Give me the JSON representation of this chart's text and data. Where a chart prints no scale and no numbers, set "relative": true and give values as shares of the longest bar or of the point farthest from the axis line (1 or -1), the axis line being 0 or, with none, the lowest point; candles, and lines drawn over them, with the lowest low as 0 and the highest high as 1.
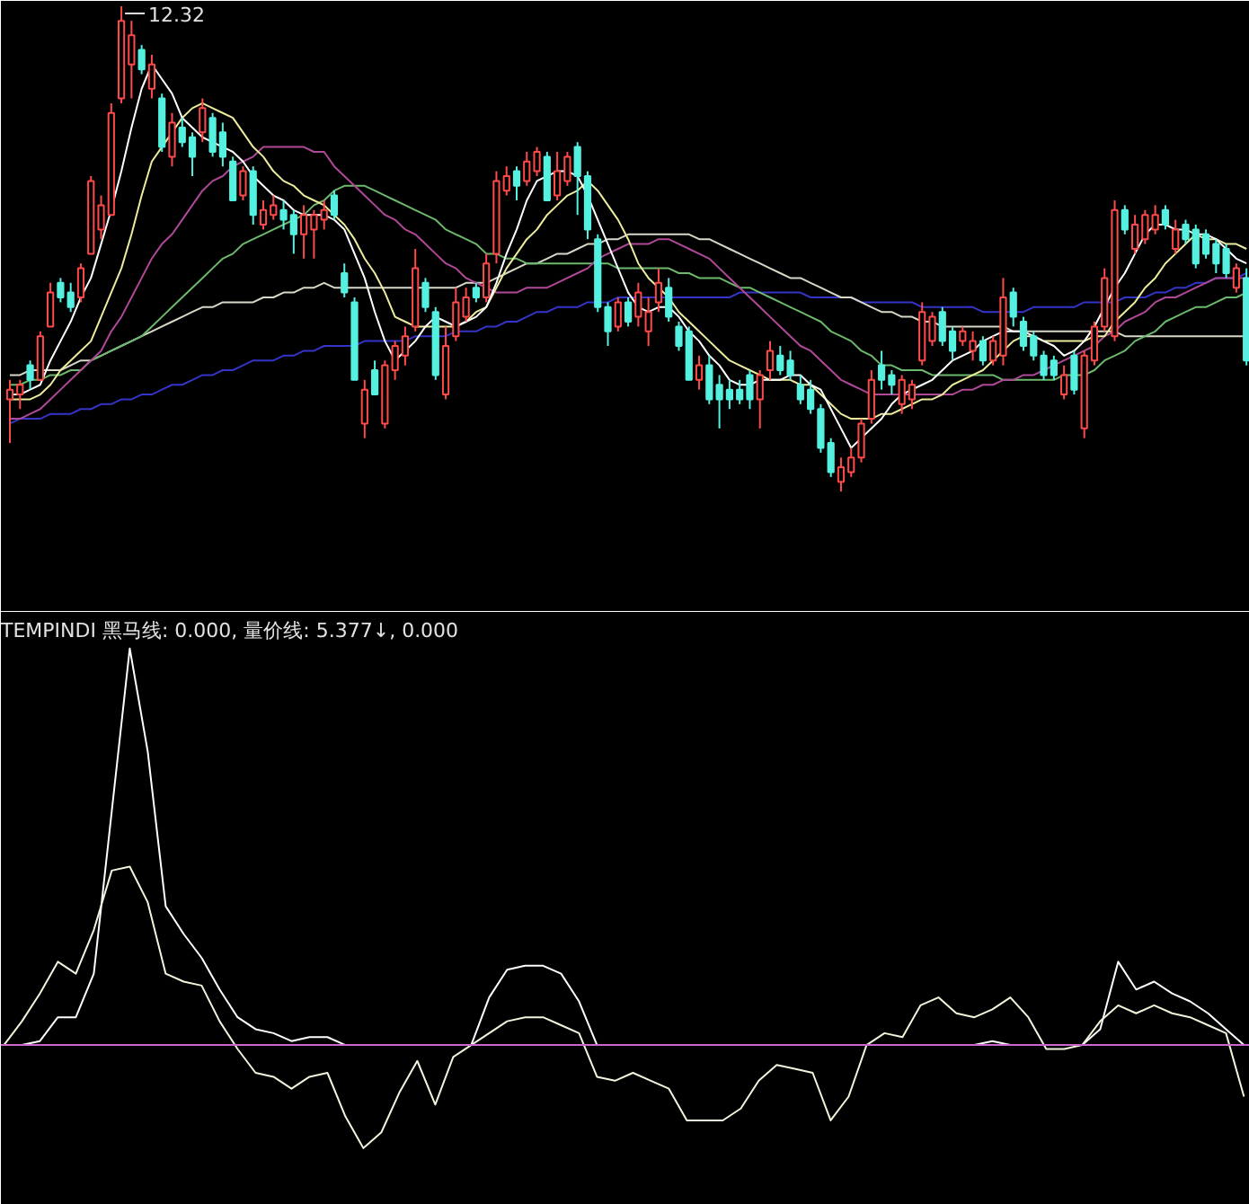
{
  "chart_data": [
    {
      "type": "candlestick",
      "relative": true,
      "categories": [
        null,
        null,
        null,
        null,
        null,
        null,
        null,
        null,
        null,
        null,
        null,
        null,
        null,
        null,
        null,
        null,
        null,
        null,
        null,
        null,
        null,
        null,
        null,
        null,
        null,
        null,
        null,
        null,
        null,
        null,
        null,
        null,
        null,
        null,
        null,
        null,
        null,
        null,
        null,
        null,
        null,
        null,
        null,
        null,
        null,
        null,
        null,
        null,
        null,
        null,
        null,
        null,
        null,
        null,
        null,
        null,
        null,
        null,
        null,
        null,
        null,
        null,
        null,
        null,
        null,
        null,
        null,
        null,
        null,
        null,
        null,
        null,
        null,
        null,
        null,
        null,
        null,
        null,
        null,
        null,
        null,
        null,
        null,
        null,
        null,
        null,
        null,
        null,
        null,
        null,
        null,
        null,
        null,
        null,
        null,
        null,
        null,
        null,
        null,
        null,
        null,
        null,
        null,
        null,
        null,
        null,
        null,
        null,
        null,
        null,
        null,
        null,
        null,
        null,
        null,
        null,
        null,
        null,
        null,
        null,
        null,
        null,
        null
      ],
      "ohlc": [
        [
          0.19,
          0.23,
          0.1,
          0.21
        ],
        [
          0.2,
          0.23,
          0.17,
          0.22
        ],
        [
          0.26,
          0.27,
          0.21,
          0.23
        ],
        [
          0.23,
          0.33,
          0.23,
          0.32
        ],
        [
          0.34,
          0.43,
          0.34,
          0.41
        ],
        [
          0.43,
          0.44,
          0.39,
          0.4
        ],
        [
          0.41,
          0.43,
          0.37,
          0.38
        ],
        [
          0.4,
          0.47,
          0.39,
          0.46
        ],
        [
          0.49,
          0.65,
          0.49,
          0.64
        ],
        [
          0.54,
          0.61,
          0.52,
          0.59
        ],
        [
          0.57,
          0.8,
          0.57,
          0.78
        ],
        [
          0.81,
          1.0,
          0.8,
          0.97
        ],
        [
          0.88,
          0.97,
          0.81,
          0.94
        ],
        [
          0.91,
          0.92,
          0.86,
          0.87
        ],
        [
          0.83,
          0.9,
          0.81,
          0.88
        ],
        [
          0.81,
          0.82,
          0.7,
          0.71
        ],
        [
          0.69,
          0.78,
          0.67,
          0.76
        ],
        [
          0.75,
          0.77,
          0.71,
          0.72
        ],
        [
          0.73,
          0.74,
          0.65,
          0.69
        ],
        [
          0.74,
          0.81,
          0.72,
          0.79
        ],
        [
          0.77,
          0.78,
          0.69,
          0.7
        ],
        [
          0.74,
          0.76,
          0.67,
          0.69
        ],
        [
          0.68,
          0.69,
          0.6,
          0.6
        ],
        [
          0.61,
          0.67,
          0.6,
          0.66
        ],
        [
          0.66,
          0.67,
          0.55,
          0.57
        ],
        [
          0.55,
          0.6,
          0.54,
          0.58
        ],
        [
          0.57,
          0.61,
          0.56,
          0.59
        ],
        [
          0.58,
          0.6,
          0.54,
          0.56
        ],
        [
          0.57,
          0.58,
          0.49,
          0.53
        ],
        [
          0.53,
          0.59,
          0.48,
          0.57
        ],
        [
          0.54,
          0.58,
          0.48,
          0.57
        ],
        [
          0.56,
          0.6,
          0.54,
          0.58
        ],
        [
          0.61,
          0.62,
          0.56,
          0.57
        ],
        [
          0.45,
          0.47,
          0.4,
          0.41
        ],
        [
          0.39,
          0.4,
          0.23,
          0.23
        ],
        [
          0.14,
          0.23,
          0.11,
          0.21
        ],
        [
          0.25,
          0.27,
          0.2,
          0.2
        ],
        [
          0.14,
          0.27,
          0.13,
          0.26
        ],
        [
          0.25,
          0.31,
          0.23,
          0.3
        ],
        [
          0.28,
          0.34,
          0.26,
          0.32
        ],
        [
          0.34,
          0.5,
          0.33,
          0.46
        ],
        [
          0.43,
          0.44,
          0.37,
          0.38
        ],
        [
          0.37,
          0.38,
          0.23,
          0.24
        ],
        [
          0.2,
          0.34,
          0.19,
          0.3
        ],
        [
          0.32,
          0.42,
          0.31,
          0.39
        ],
        [
          0.36,
          0.42,
          0.35,
          0.4
        ],
        [
          0.42,
          0.43,
          0.39,
          0.4
        ],
        [
          0.4,
          0.49,
          0.39,
          0.47
        ],
        [
          0.49,
          0.66,
          0.47,
          0.64
        ],
        [
          0.62,
          0.67,
          0.61,
          0.65
        ],
        [
          0.66,
          0.67,
          0.6,
          0.63
        ],
        [
          0.64,
          0.7,
          0.63,
          0.68
        ],
        [
          0.66,
          0.71,
          0.65,
          0.7
        ],
        [
          0.69,
          0.7,
          0.6,
          0.6
        ],
        [
          0.61,
          0.7,
          0.6,
          0.66
        ],
        [
          0.64,
          0.7,
          0.63,
          0.69
        ],
        [
          0.71,
          0.72,
          0.57,
          0.65
        ],
        [
          0.65,
          0.66,
          0.52,
          0.54
        ],
        [
          0.52,
          0.53,
          0.37,
          0.38
        ],
        [
          0.38,
          0.39,
          0.3,
          0.33
        ],
        [
          0.34,
          0.4,
          0.33,
          0.39
        ],
        [
          0.39,
          0.4,
          0.34,
          0.35
        ],
        [
          0.36,
          0.43,
          0.34,
          0.41
        ],
        [
          0.33,
          0.4,
          0.3,
          0.37
        ],
        [
          0.39,
          0.46,
          0.37,
          0.43
        ],
        [
          0.42,
          0.44,
          0.35,
          0.36
        ],
        [
          0.34,
          0.35,
          0.29,
          0.3
        ],
        [
          0.33,
          0.34,
          0.23,
          0.23
        ],
        [
          0.23,
          0.28,
          0.21,
          0.26
        ],
        [
          0.26,
          0.28,
          0.18,
          0.19
        ],
        [
          0.22,
          0.24,
          0.13,
          0.19
        ],
        [
          0.21,
          0.23,
          0.17,
          0.19
        ],
        [
          0.21,
          0.23,
          0.18,
          0.19
        ],
        [
          0.24,
          0.25,
          0.17,
          0.19
        ],
        [
          0.19,
          0.25,
          0.13,
          0.24
        ],
        [
          0.25,
          0.31,
          0.23,
          0.29
        ],
        [
          0.28,
          0.3,
          0.24,
          0.25
        ],
        [
          0.27,
          0.29,
          0.23,
          0.24
        ],
        [
          0.22,
          0.24,
          0.18,
          0.19
        ],
        [
          0.21,
          0.23,
          0.16,
          0.17
        ],
        [
          0.17,
          0.18,
          0.08,
          0.09
        ],
        [
          0.1,
          0.11,
          0.03,
          0.04
        ],
        [
          0.02,
          0.07,
          0.0,
          0.05
        ],
        [
          0.04,
          0.09,
          0.03,
          0.07
        ],
        [
          0.07,
          0.15,
          0.06,
          0.14
        ],
        [
          0.15,
          0.25,
          0.14,
          0.23
        ],
        [
          0.26,
          0.29,
          0.21,
          0.23
        ],
        [
          0.24,
          0.25,
          0.2,
          0.22
        ],
        [
          0.18,
          0.24,
          0.16,
          0.23
        ],
        [
          0.19,
          0.23,
          0.17,
          0.22
        ],
        [
          0.27,
          0.39,
          0.26,
          0.37
        ],
        [
          0.31,
          0.37,
          0.3,
          0.36
        ],
        [
          0.37,
          0.38,
          0.3,
          0.31
        ],
        [
          0.33,
          0.34,
          0.27,
          0.29
        ],
        [
          0.31,
          0.34,
          0.3,
          0.33
        ],
        [
          0.29,
          0.33,
          0.27,
          0.31
        ],
        [
          0.31,
          0.32,
          0.26,
          0.27
        ],
        [
          0.27,
          0.32,
          0.26,
          0.31
        ],
        [
          0.28,
          0.44,
          0.26,
          0.4
        ],
        [
          0.41,
          0.42,
          0.34,
          0.36
        ],
        [
          0.35,
          0.36,
          0.29,
          0.3
        ],
        [
          0.32,
          0.33,
          0.27,
          0.28
        ],
        [
          0.28,
          0.29,
          0.23,
          0.24
        ],
        [
          0.27,
          0.28,
          0.23,
          0.24
        ],
        [
          0.2,
          0.26,
          0.19,
          0.24
        ],
        [
          0.28,
          0.29,
          0.2,
          0.21
        ],
        [
          0.13,
          0.29,
          0.11,
          0.28
        ],
        [
          0.27,
          0.35,
          0.26,
          0.34
        ],
        [
          0.34,
          0.46,
          0.33,
          0.44
        ],
        [
          0.32,
          0.6,
          0.31,
          0.58
        ],
        [
          0.58,
          0.59,
          0.53,
          0.54
        ],
        [
          0.5,
          0.57,
          0.49,
          0.55
        ],
        [
          0.52,
          0.58,
          0.51,
          0.57
        ],
        [
          0.54,
          0.59,
          0.53,
          0.57
        ],
        [
          0.58,
          0.59,
          0.54,
          0.55
        ],
        [
          0.5,
          0.56,
          0.49,
          0.54
        ],
        [
          0.55,
          0.56,
          0.51,
          0.52
        ],
        [
          0.54,
          0.55,
          0.46,
          0.47
        ],
        [
          0.53,
          0.54,
          0.48,
          0.49
        ],
        [
          0.51,
          0.52,
          0.45,
          0.47
        ],
        [
          0.5,
          0.51,
          0.44,
          0.45
        ],
        [
          0.42,
          0.47,
          0.41,
          0.46
        ],
        [
          0.44,
          0.46,
          0.26,
          0.27
        ]
      ],
      "colors": [
        "#ff4a4a",
        "#ff4a4a",
        "#54f0e0",
        "#ff4a4a",
        "#ff4a4a",
        "#54f0e0",
        "#54f0e0",
        "#ff4a4a",
        "#ff4a4a",
        "#ff4a4a",
        "#ff4a4a",
        "#ff4a4a",
        "#ff4a4a",
        "#54f0e0",
        "#ff4a4a",
        "#54f0e0",
        "#ff4a4a",
        "#54f0e0",
        "#54f0e0",
        "#ff4a4a",
        "#54f0e0",
        "#54f0e0",
        "#54f0e0",
        "#ff4a4a",
        "#54f0e0",
        "#ff4a4a",
        "#ff4a4a",
        "#54f0e0",
        "#54f0e0",
        "#ff4a4a",
        "#ff4a4a",
        "#ff4a4a",
        "#54f0e0",
        "#54f0e0",
        "#54f0e0",
        "#ff4a4a",
        "#54f0e0",
        "#ff4a4a",
        "#ff4a4a",
        "#ff4a4a",
        "#ff4a4a",
        "#54f0e0",
        "#54f0e0",
        "#ff4a4a",
        "#ff4a4a",
        "#ff4a4a",
        "#54f0e0",
        "#ff4a4a",
        "#ff4a4a",
        "#ff4a4a",
        "#54f0e0",
        "#ff4a4a",
        "#ff4a4a",
        "#54f0e0",
        "#ff4a4a",
        "#ff4a4a",
        "#54f0e0",
        "#54f0e0",
        "#54f0e0",
        "#54f0e0",
        "#ff4a4a",
        "#54f0e0",
        "#ff4a4a",
        "#ff4a4a",
        "#ff4a4a",
        "#54f0e0",
        "#54f0e0",
        "#54f0e0",
        "#ff4a4a",
        "#54f0e0",
        "#54f0e0",
        "#54f0e0",
        "#54f0e0",
        "#54f0e0",
        "#ff4a4a",
        "#ff4a4a",
        "#54f0e0",
        "#54f0e0",
        "#54f0e0",
        "#54f0e0",
        "#54f0e0",
        "#54f0e0",
        "#ff4a4a",
        "#ff4a4a",
        "#ff4a4a",
        "#ff4a4a",
        "#54f0e0",
        "#54f0e0",
        "#ff4a4a",
        "#ff4a4a",
        "#ff4a4a",
        "#ff4a4a",
        "#54f0e0",
        "#54f0e0",
        "#ff4a4a",
        "#ff4a4a",
        "#54f0e0",
        "#ff4a4a",
        "#ff4a4a",
        "#54f0e0",
        "#54f0e0",
        "#54f0e0",
        "#54f0e0",
        "#54f0e0",
        "#ff4a4a",
        "#54f0e0",
        "#ff4a4a",
        "#ff4a4a",
        "#ff4a4a",
        "#ff4a4a",
        "#54f0e0",
        "#ff4a4a",
        "#ff4a4a",
        "#ff4a4a",
        "#54f0e0",
        "#ff4a4a",
        "#54f0e0",
        "#54f0e0",
        "#54f0e0",
        "#54f0e0",
        "#54f0e0",
        "#ff4a4a",
        "#54f0e0"
      ],
      "series": [
        {
          "type": "line",
          "color": "#3434c8",
          "values": [
            0.14,
            0.15,
            0.15,
            0.15,
            0.16,
            0.16,
            0.16,
            0.17,
            0.17,
            0.18,
            0.18,
            0.19,
            0.19,
            0.2,
            0.2,
            0.21,
            0.22,
            0.22,
            0.23,
            0.24,
            0.24,
            0.25,
            0.25,
            0.26,
            0.27,
            0.27,
            0.27,
            0.28,
            0.28,
            0.29,
            0.29,
            0.3,
            0.3,
            0.3,
            0.3,
            0.31,
            0.31,
            0.31,
            0.31,
            0.31,
            0.32,
            0.32,
            0.32,
            0.32,
            0.33,
            0.33,
            0.33,
            0.34,
            0.34,
            0.35,
            0.35,
            0.36,
            0.37,
            0.37,
            0.38,
            0.38,
            0.38,
            0.39,
            0.39,
            0.39,
            0.4,
            0.4,
            0.4,
            0.4,
            0.4,
            0.4,
            0.4,
            0.4,
            0.4,
            0.4,
            0.4,
            0.4,
            0.41,
            0.41,
            0.41,
            0.41,
            0.41,
            0.41,
            0.41,
            0.4,
            0.4,
            0.4,
            0.4,
            0.4,
            0.39,
            0.39,
            0.39,
            0.39,
            0.39,
            0.39,
            0.38,
            0.38,
            0.38,
            0.38,
            0.38,
            0.38,
            0.37,
            0.37,
            0.37,
            0.37,
            0.37,
            0.38,
            0.38,
            0.38,
            0.38,
            0.38,
            0.39,
            0.39,
            0.39,
            0.39,
            0.4,
            0.4,
            0.4,
            0.41,
            0.41,
            0.42,
            0.42,
            0.43,
            0.43,
            0.44,
            0.44,
            0.44,
            0.45
          ]
        },
        {
          "type": "line",
          "color": "#d8d8c8",
          "values": [
            0.24,
            0.24,
            0.25,
            0.25,
            0.25,
            0.25,
            0.26,
            0.27,
            0.27,
            0.28,
            0.29,
            0.3,
            0.31,
            0.32,
            0.33,
            0.34,
            0.35,
            0.36,
            0.37,
            0.38,
            0.38,
            0.39,
            0.39,
            0.39,
            0.39,
            0.4,
            0.4,
            0.41,
            0.41,
            0.42,
            0.42,
            0.43,
            0.42,
            0.42,
            0.42,
            0.42,
            0.42,
            0.42,
            0.42,
            0.42,
            0.42,
            0.42,
            0.42,
            0.42,
            0.42,
            0.43,
            0.43,
            0.43,
            0.44,
            0.45,
            0.46,
            0.47,
            0.47,
            0.48,
            0.49,
            0.49,
            0.5,
            0.51,
            0.51,
            0.52,
            0.52,
            0.53,
            0.53,
            0.53,
            0.53,
            0.53,
            0.53,
            0.53,
            0.52,
            0.52,
            0.51,
            0.5,
            0.49,
            0.48,
            0.47,
            0.46,
            0.45,
            0.44,
            0.44,
            0.43,
            0.42,
            0.41,
            0.4,
            0.4,
            0.39,
            0.38,
            0.37,
            0.37,
            0.36,
            0.36,
            0.35,
            0.35,
            0.34,
            0.34,
            0.34,
            0.34,
            0.34,
            0.34,
            0.34,
            0.33,
            0.33,
            0.33,
            0.33,
            0.33,
            0.33,
            0.33,
            0.33,
            0.33,
            0.33,
            0.33,
            0.32,
            0.32,
            0.32,
            0.32,
            0.32,
            0.32,
            0.32,
            0.32,
            0.32,
            0.32,
            0.32,
            0.32,
            0.32
          ]
        },
        {
          "type": "line",
          "color": "#6cb86c",
          "values": [
            0.22,
            0.22,
            0.23,
            0.23,
            0.24,
            0.24,
            0.25,
            0.25,
            0.27,
            0.28,
            0.29,
            0.3,
            0.31,
            0.32,
            0.34,
            0.36,
            0.38,
            0.4,
            0.42,
            0.44,
            0.46,
            0.48,
            0.49,
            0.51,
            0.52,
            0.53,
            0.54,
            0.55,
            0.56,
            0.57,
            0.59,
            0.6,
            0.62,
            0.63,
            0.63,
            0.63,
            0.62,
            0.61,
            0.6,
            0.59,
            0.58,
            0.57,
            0.56,
            0.54,
            0.53,
            0.52,
            0.51,
            0.49,
            0.49,
            0.48,
            0.48,
            0.47,
            0.47,
            0.47,
            0.47,
            0.47,
            0.47,
            0.47,
            0.47,
            0.47,
            0.46,
            0.46,
            0.46,
            0.46,
            0.46,
            0.46,
            0.45,
            0.45,
            0.44,
            0.44,
            0.44,
            0.43,
            0.42,
            0.42,
            0.41,
            0.4,
            0.39,
            0.38,
            0.37,
            0.36,
            0.35,
            0.33,
            0.32,
            0.31,
            0.29,
            0.28,
            0.26,
            0.26,
            0.25,
            0.25,
            0.25,
            0.24,
            0.24,
            0.24,
            0.24,
            0.24,
            0.24,
            0.24,
            0.23,
            0.23,
            0.23,
            0.23,
            0.23,
            0.23,
            0.24,
            0.24,
            0.24,
            0.25,
            0.27,
            0.28,
            0.29,
            0.31,
            0.32,
            0.33,
            0.35,
            0.36,
            0.37,
            0.38,
            0.38,
            0.39,
            0.4,
            0.4,
            0.41
          ]
        },
        {
          "type": "line",
          "color": "#b04898",
          "values": [
            0.15,
            0.15,
            0.16,
            0.17,
            0.19,
            0.21,
            0.23,
            0.25,
            0.27,
            0.29,
            0.33,
            0.36,
            0.4,
            0.44,
            0.48,
            0.51,
            0.53,
            0.56,
            0.59,
            0.62,
            0.64,
            0.65,
            0.67,
            0.68,
            0.69,
            0.71,
            0.71,
            0.71,
            0.71,
            0.71,
            0.7,
            0.7,
            0.67,
            0.65,
            0.63,
            0.61,
            0.59,
            0.57,
            0.56,
            0.54,
            0.53,
            0.51,
            0.49,
            0.47,
            0.46,
            0.44,
            0.43,
            0.42,
            0.41,
            0.41,
            0.41,
            0.42,
            0.42,
            0.42,
            0.43,
            0.44,
            0.45,
            0.46,
            0.48,
            0.49,
            0.5,
            0.51,
            0.51,
            0.51,
            0.52,
            0.52,
            0.51,
            0.5,
            0.49,
            0.48,
            0.46,
            0.44,
            0.42,
            0.4,
            0.38,
            0.36,
            0.34,
            0.32,
            0.3,
            0.29,
            0.27,
            0.25,
            0.23,
            0.22,
            0.21,
            0.2,
            0.2,
            0.2,
            0.2,
            0.2,
            0.2,
            0.2,
            0.2,
            0.2,
            0.21,
            0.21,
            0.22,
            0.22,
            0.23,
            0.23,
            0.24,
            0.24,
            0.25,
            0.26,
            0.27,
            0.28,
            0.29,
            0.3,
            0.32,
            0.33,
            0.35,
            0.36,
            0.37,
            0.39,
            0.4,
            0.4,
            0.41,
            0.42,
            0.43,
            0.44,
            0.44,
            0.44,
            0.44
          ]
        },
        {
          "type": "line",
          "color": "#ecec9c",
          "values": [
            0.19,
            0.19,
            0.19,
            0.2,
            0.22,
            0.25,
            0.27,
            0.29,
            0.31,
            0.36,
            0.41,
            0.46,
            0.53,
            0.61,
            0.68,
            0.71,
            0.74,
            0.77,
            0.79,
            0.8,
            0.79,
            0.78,
            0.77,
            0.74,
            0.71,
            0.69,
            0.66,
            0.64,
            0.63,
            0.61,
            0.6,
            0.59,
            0.57,
            0.55,
            0.52,
            0.48,
            0.45,
            0.41,
            0.36,
            0.35,
            0.34,
            0.34,
            0.34,
            0.34,
            0.34,
            0.35,
            0.37,
            0.38,
            0.42,
            0.46,
            0.49,
            0.52,
            0.54,
            0.57,
            0.59,
            0.61,
            0.62,
            0.64,
            0.62,
            0.59,
            0.56,
            0.52,
            0.47,
            0.44,
            0.42,
            0.4,
            0.37,
            0.35,
            0.33,
            0.31,
            0.29,
            0.27,
            0.26,
            0.25,
            0.24,
            0.23,
            0.23,
            0.23,
            0.22,
            0.22,
            0.2,
            0.18,
            0.16,
            0.15,
            0.15,
            0.15,
            0.16,
            0.16,
            0.17,
            0.18,
            0.19,
            0.19,
            0.2,
            0.22,
            0.23,
            0.24,
            0.25,
            0.27,
            0.29,
            0.31,
            0.32,
            0.32,
            0.31,
            0.31,
            0.31,
            0.31,
            0.31,
            0.32,
            0.32,
            0.35,
            0.37,
            0.39,
            0.42,
            0.44,
            0.47,
            0.49,
            0.51,
            0.53,
            0.52,
            0.52,
            0.51,
            0.51,
            0.5
          ]
        },
        {
          "type": "line",
          "color": "#ffffff",
          "values": [
            0.2,
            0.2,
            0.21,
            0.22,
            0.27,
            0.31,
            0.35,
            0.4,
            0.44,
            0.51,
            0.58,
            0.66,
            0.75,
            0.83,
            0.88,
            0.85,
            0.82,
            0.77,
            0.75,
            0.73,
            0.72,
            0.71,
            0.7,
            0.68,
            0.65,
            0.63,
            0.61,
            0.6,
            0.58,
            0.57,
            0.57,
            0.57,
            0.56,
            0.54,
            0.49,
            0.44,
            0.37,
            0.31,
            0.27,
            0.29,
            0.31,
            0.34,
            0.36,
            0.35,
            0.34,
            0.35,
            0.36,
            0.38,
            0.43,
            0.49,
            0.54,
            0.6,
            0.64,
            0.65,
            0.66,
            0.66,
            0.65,
            0.61,
            0.56,
            0.51,
            0.46,
            0.41,
            0.38,
            0.37,
            0.38,
            0.38,
            0.36,
            0.33,
            0.31,
            0.28,
            0.26,
            0.23,
            0.22,
            0.22,
            0.23,
            0.23,
            0.23,
            0.24,
            0.24,
            0.22,
            0.21,
            0.17,
            0.13,
            0.09,
            0.11,
            0.13,
            0.15,
            0.18,
            0.2,
            0.21,
            0.22,
            0.23,
            0.25,
            0.27,
            0.28,
            0.29,
            0.31,
            0.32,
            0.33,
            0.33,
            0.33,
            0.32,
            0.31,
            0.3,
            0.28,
            0.29,
            0.31,
            0.34,
            0.38,
            0.42,
            0.45,
            0.49,
            0.53,
            0.55,
            0.55,
            0.54,
            0.54,
            0.53,
            0.53,
            0.52,
            0.5,
            0.48,
            0.47
          ]
        }
      ],
      "annotations": [
        "12.32"
      ]
    },
    {
      "type": "line",
      "relative": true,
      "title": "TEMPINDI 黑马线: 0.000, 量价线: 5.377↓, 0.000",
      "categories": [
        null,
        null,
        null,
        null,
        null,
        null,
        null,
        null,
        null,
        null,
        null,
        null,
        null,
        null,
        null,
        null,
        null,
        null,
        null,
        null,
        null,
        null,
        null,
        null,
        null,
        null,
        null,
        null,
        null,
        null,
        null,
        null,
        null,
        null,
        null,
        null,
        null,
        null,
        null,
        null,
        null,
        null,
        null,
        null,
        null,
        null,
        null,
        null,
        null,
        null,
        null,
        null,
        null,
        null,
        null,
        null,
        null,
        null,
        null,
        null,
        null,
        null,
        null,
        null,
        null,
        null,
        null,
        null,
        null,
        null
      ],
      "series": [
        {
          "color": "#ffffff",
          "values": [
            0,
            0,
            0.01,
            0.07,
            0.07,
            0.18,
            0.59,
            1.0,
            0.74,
            0.35,
            0.28,
            0.22,
            0.14,
            0.07,
            0.04,
            0.03,
            0.01,
            0.02,
            0.02,
            0,
            0,
            0,
            0,
            0,
            0,
            0,
            0,
            0.12,
            0.19,
            0.2,
            0.2,
            0.18,
            0.11,
            0,
            0,
            0,
            0,
            0,
            0,
            0,
            0,
            0,
            0,
            0,
            0,
            0,
            0,
            0,
            0,
            0,
            0,
            0,
            0,
            0,
            0,
            0.01,
            0,
            0,
            0,
            0,
            0,
            0.04,
            0.21,
            0.14,
            0.16,
            0.13,
            0.11,
            0.08,
            0.04,
            0
          ]
        },
        {
          "color": "#f4f4dc",
          "values": [
            0,
            0.06,
            0.13,
            0.21,
            0.18,
            0.29,
            0.44,
            0.45,
            0.36,
            0.18,
            0.16,
            0.15,
            0.06,
            -0.01,
            -0.07,
            -0.08,
            -0.11,
            -0.08,
            -0.07,
            -0.18,
            -0.26,
            -0.22,
            -0.12,
            -0.04,
            -0.15,
            -0.03,
            0,
            0.03,
            0.06,
            0.07,
            0.07,
            0.05,
            0.03,
            -0.08,
            -0.09,
            -0.07,
            -0.09,
            -0.11,
            -0.19,
            -0.19,
            -0.19,
            -0.16,
            -0.09,
            -0.05,
            -0.06,
            -0.07,
            -0.19,
            -0.13,
            0,
            0.03,
            0.02,
            0.1,
            0.12,
            0.08,
            0.07,
            0.09,
            0.12,
            0.07,
            -0.01,
            -0.01,
            0,
            0.06,
            0.1,
            0.08,
            0.1,
            0.08,
            0.07,
            0.05,
            0.03,
            -0.13
          ]
        }
      ],
      "ref_lines": [
        {
          "axis": "y",
          "value": 0,
          "color": "#cc66cc"
        }
      ]
    }
  ]
}
